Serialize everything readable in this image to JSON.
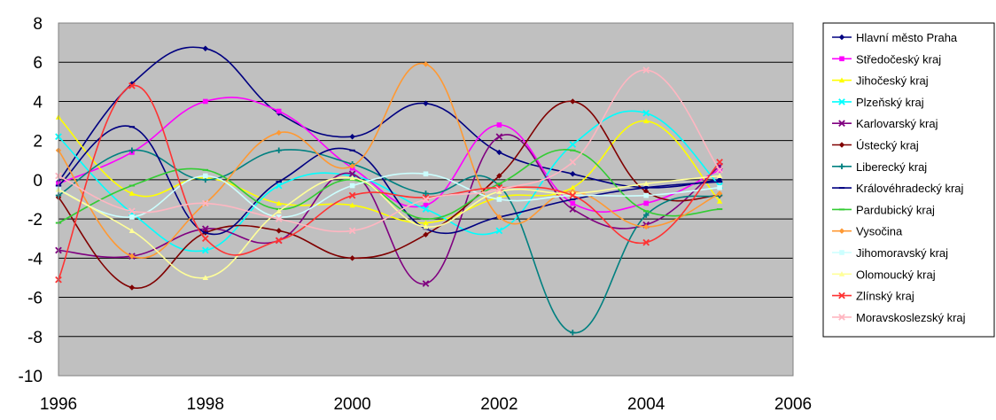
{
  "chart_data": {
    "type": "line",
    "title": "",
    "xlabel": "",
    "ylabel": "",
    "xlim": [
      1996,
      2006
    ],
    "ylim": [
      -10,
      8
    ],
    "xticks": [
      "1996",
      "1998",
      "2000",
      "2002",
      "2004",
      "2006"
    ],
    "yticks": [
      "8",
      "6",
      "4",
      "2",
      "0",
      "-2",
      "-4",
      "-6",
      "-8",
      "-10"
    ],
    "x": [
      1996,
      1997,
      1998,
      1999,
      2000,
      2001,
      2002,
      2003,
      2004,
      2005
    ],
    "grid": "horizontal",
    "plot_background": "#c0c0c0",
    "legend_position": "right",
    "series": [
      {
        "name": "Hlavní město Praha",
        "color": "#000080",
        "marker": "diamond",
        "values": [
          -0.1,
          4.9,
          6.7,
          3.4,
          2.2,
          3.9,
          1.4,
          0.3,
          -0.4,
          0.0
        ]
      },
      {
        "name": "Středočeský kraj",
        "color": "#ff00ff",
        "marker": "square",
        "values": [
          -0.2,
          1.4,
          4.0,
          3.5,
          0.6,
          -1.3,
          2.8,
          -1.2,
          -1.2,
          0.5
        ]
      },
      {
        "name": "Jihočeský kraj",
        "color": "#ffff00",
        "marker": "triangle",
        "values": [
          3.2,
          -0.7,
          0.1,
          -1.2,
          -1.3,
          -2.2,
          -0.9,
          -0.4,
          3.0,
          -1.1
        ]
      },
      {
        "name": "Plzeňský kraj",
        "color": "#00ffff",
        "marker": "x",
        "values": [
          2.2,
          -1.7,
          -3.6,
          -0.3,
          0.2,
          -1.5,
          -2.6,
          1.8,
          3.4,
          -0.3
        ]
      },
      {
        "name": "Karlovarský kraj",
        "color": "#800080",
        "marker": "x",
        "values": [
          -3.6,
          -3.9,
          -2.5,
          -3.1,
          0.3,
          -5.3,
          2.2,
          -1.5,
          -2.3,
          0.7
        ]
      },
      {
        "name": "Ústecký kraj",
        "color": "#800000",
        "marker": "diamond",
        "values": [
          -0.9,
          -5.5,
          -2.7,
          -2.6,
          -4.0,
          -2.8,
          0.2,
          4.0,
          -0.6,
          -0.8
        ]
      },
      {
        "name": "Liberecký kraj",
        "color": "#008080",
        "marker": "plus",
        "values": [
          -0.8,
          1.5,
          0.0,
          1.5,
          0.8,
          -0.7,
          -0.3,
          -7.8,
          -1.8,
          -0.8
        ]
      },
      {
        "name": "Královéhradecký kraj",
        "color": "#000080",
        "marker": "dash",
        "values": [
          -0.3,
          2.7,
          -2.7,
          -0.1,
          1.5,
          -2.5,
          -1.9,
          -1.0,
          -0.4,
          -0.1
        ]
      },
      {
        "name": "Pardubický kraj",
        "color": "#33cc33",
        "marker": "dash",
        "values": [
          -2.2,
          -0.3,
          0.5,
          -1.5,
          0.0,
          -2.0,
          -0.2,
          1.5,
          -1.6,
          -1.5
        ]
      },
      {
        "name": "Vysočina",
        "color": "#ff9933",
        "marker": "diamond",
        "values": [
          1.5,
          -3.9,
          -1.2,
          2.4,
          0.7,
          5.9,
          -1.9,
          -0.6,
          -2.4,
          -0.7
        ]
      },
      {
        "name": "Jihomoravský kraj",
        "color": "#ccffff",
        "marker": "square",
        "values": [
          -0.5,
          -1.9,
          0.2,
          -1.9,
          -0.3,
          0.3,
          -1.0,
          -0.8,
          -0.8,
          -0.4
        ]
      },
      {
        "name": "Olomoucký kraj",
        "color": "#ffff99",
        "marker": "triangle",
        "values": [
          -0.5,
          -2.6,
          -5.0,
          -1.6,
          0.1,
          -2.4,
          -0.6,
          -0.7,
          -0.2,
          0.2
        ]
      },
      {
        "name": "Zlínský kraj",
        "color": "#ff3333",
        "marker": "x",
        "values": [
          -5.1,
          4.8,
          -3.0,
          -3.1,
          -0.8,
          -0.9,
          -0.4,
          -0.8,
          -3.2,
          0.9
        ]
      },
      {
        "name": "Moravskoslezský kraj",
        "color": "#ffb6c1",
        "marker": "x",
        "values": [
          0.2,
          -1.6,
          -1.2,
          -2.0,
          -2.6,
          -1.0,
          -0.5,
          0.9,
          5.6,
          0.5
        ]
      }
    ]
  }
}
